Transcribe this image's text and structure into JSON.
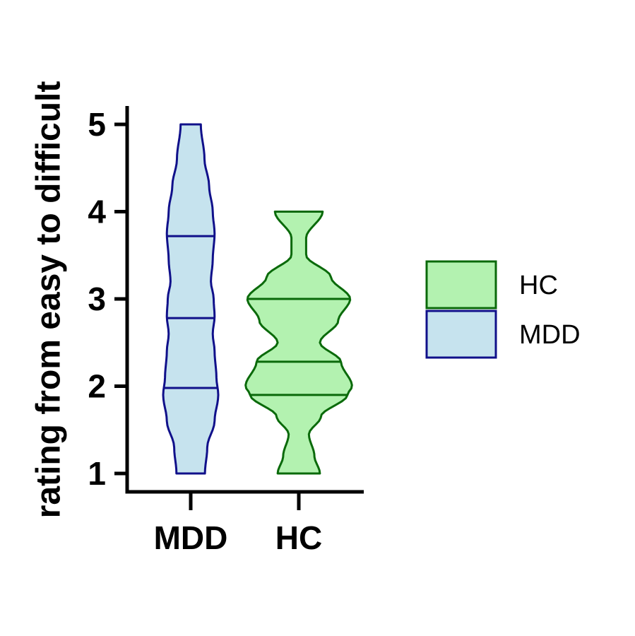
{
  "chart_data": {
    "type": "violin",
    "title": "",
    "xlabel": "",
    "ylabel": "rating from easy to difficult",
    "ylim": [
      1,
      5
    ],
    "yticks": [
      1,
      2,
      3,
      4,
      5
    ],
    "categories": [
      "MDD",
      "HC"
    ],
    "legend": {
      "position": "right",
      "entries": [
        "HC",
        "MDD"
      ]
    },
    "series": [
      {
        "name": "MDD",
        "fill": "#c6e3ee",
        "stroke": "#10108a",
        "min": 1,
        "max": 5,
        "quartiles": [
          1.98,
          2.78,
          3.72
        ],
        "density": [
          {
            "y": 1.0,
            "w": 0.31
          },
          {
            "y": 1.3,
            "w": 0.36
          },
          {
            "y": 1.6,
            "w": 0.52
          },
          {
            "y": 1.9,
            "w": 0.6
          },
          {
            "y": 2.1,
            "w": 0.56
          },
          {
            "y": 2.4,
            "w": 0.52
          },
          {
            "y": 2.6,
            "w": 0.48
          },
          {
            "y": 2.8,
            "w": 0.52
          },
          {
            "y": 3.0,
            "w": 0.5
          },
          {
            "y": 3.2,
            "w": 0.44
          },
          {
            "y": 3.45,
            "w": 0.48
          },
          {
            "y": 3.75,
            "w": 0.52
          },
          {
            "y": 4.0,
            "w": 0.48
          },
          {
            "y": 4.3,
            "w": 0.4
          },
          {
            "y": 4.6,
            "w": 0.3
          },
          {
            "y": 5.0,
            "w": 0.22
          }
        ]
      },
      {
        "name": "HC",
        "fill": "#b3f2b0",
        "stroke": "#0a6a0a",
        "min": 1,
        "max": 4,
        "quartiles": [
          1.9,
          2.28,
          3.0
        ],
        "density": [
          {
            "y": 1.0,
            "w": 0.46
          },
          {
            "y": 1.2,
            "w": 0.34
          },
          {
            "y": 1.45,
            "w": 0.22
          },
          {
            "y": 1.65,
            "w": 0.48
          },
          {
            "y": 1.9,
            "w": 1.06
          },
          {
            "y": 2.0,
            "w": 1.16
          },
          {
            "y": 2.28,
            "w": 0.92
          },
          {
            "y": 2.5,
            "w": 0.46
          },
          {
            "y": 2.75,
            "w": 0.86
          },
          {
            "y": 3.0,
            "w": 1.12
          },
          {
            "y": 3.25,
            "w": 0.7
          },
          {
            "y": 3.5,
            "w": 0.16
          },
          {
            "y": 3.7,
            "w": 0.16
          },
          {
            "y": 4.0,
            "w": 0.52
          }
        ]
      }
    ]
  }
}
